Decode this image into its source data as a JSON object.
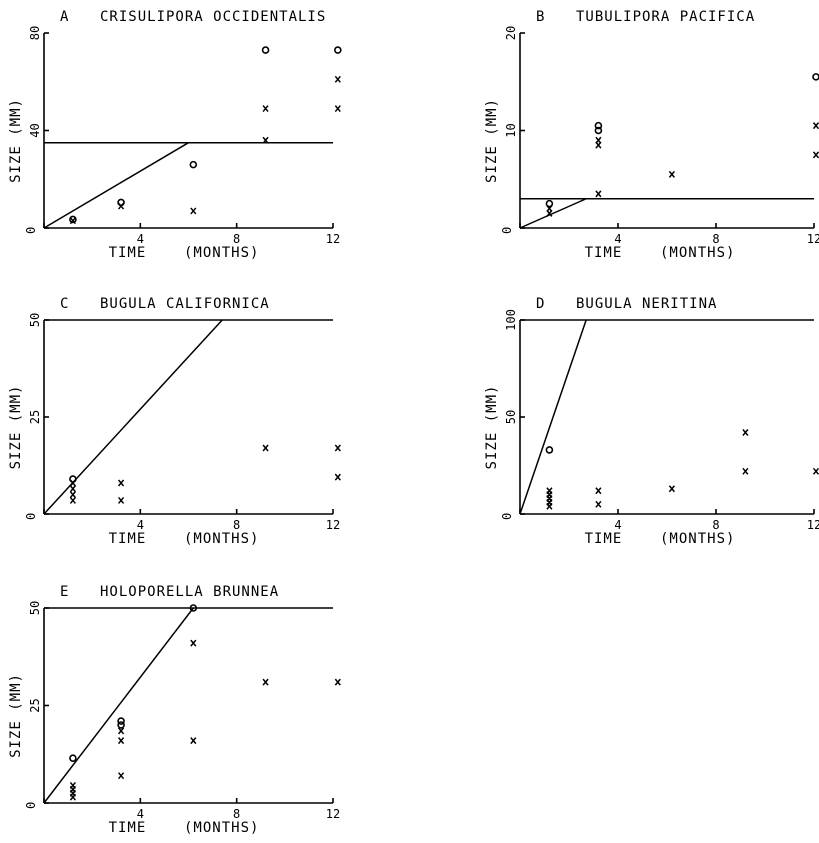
{
  "chart_data": [
    {
      "type": "scatter",
      "letter": "A",
      "title": "CRISULIPORA OCCIDENTALIS",
      "xlabel": "TIME    (MONTHS)",
      "ylabel": "SIZE  (MM)",
      "xlim": [
        0,
        12
      ],
      "ylim": [
        0,
        80
      ],
      "xticks": [
        "0",
        "4",
        "8",
        "12"
      ],
      "yticks": [
        "0",
        "40",
        "80"
      ],
      "series": [
        {
          "marker": "o",
          "points": [
            [
              1.2,
              3.5
            ],
            [
              3.2,
              10.5
            ],
            [
              6.2,
              26
            ],
            [
              9.2,
              73
            ],
            [
              12.2,
              73
            ]
          ]
        },
        {
          "marker": "x",
          "points": [
            [
              1.2,
              3
            ],
            [
              3.2,
              9
            ],
            [
              6.2,
              7
            ],
            [
              9.2,
              36
            ],
            [
              9.2,
              49
            ],
            [
              12.2,
              49
            ],
            [
              12.2,
              61
            ]
          ]
        }
      ],
      "lines": [
        {
          "kind": "diagonal",
          "x": [
            0,
            6
          ],
          "y": [
            0,
            35
          ]
        },
        {
          "kind": "horizontal",
          "y": 35
        }
      ]
    },
    {
      "type": "scatter",
      "letter": "B",
      "title": "TUBULIPORA PACIFICA",
      "xlabel": "TIME    (MONTHS)",
      "ylabel": "SIZE  (MM)",
      "xlim": [
        0,
        12
      ],
      "ylim": [
        0,
        20
      ],
      "xticks": [
        "0",
        "4",
        "8",
        "12"
      ],
      "yticks": [
        "0",
        "10",
        "20"
      ],
      "series": [
        {
          "marker": "o",
          "points": [
            [
              1.2,
              2.5
            ],
            [
              3.2,
              10.5
            ],
            [
              3.2,
              10
            ],
            [
              12.2,
              15.5
            ]
          ]
        },
        {
          "marker": "x",
          "points": [
            [
              1.2,
              2
            ],
            [
              1.2,
              1.5
            ],
            [
              3.2,
              9
            ],
            [
              3.2,
              8.5
            ],
            [
              3.2,
              3.5
            ],
            [
              6.2,
              5.5
            ],
            [
              12.2,
              10.5
            ],
            [
              12.2,
              7.5
            ]
          ]
        }
      ],
      "lines": [
        {
          "kind": "diagonal",
          "x": [
            0,
            2.7
          ],
          "y": [
            0,
            3
          ]
        },
        {
          "kind": "horizontal",
          "y": 3
        }
      ]
    },
    {
      "type": "scatter",
      "letter": "C",
      "title": "BUGULA CALIFORNICA",
      "xlabel": "TIME    (MONTHS)",
      "ylabel": "SIZE (MM)",
      "xlim": [
        0,
        12
      ],
      "ylim": [
        0,
        50
      ],
      "xticks": [
        "0",
        "4",
        "8",
        "12"
      ],
      "yticks": [
        "0",
        "25",
        "50"
      ],
      "series": [
        {
          "marker": "o",
          "points": [
            [
              1.2,
              9
            ]
          ]
        },
        {
          "marker": "x",
          "points": [
            [
              1.2,
              8
            ],
            [
              1.2,
              6.5
            ],
            [
              1.2,
              5
            ],
            [
              1.2,
              3.5
            ],
            [
              3.2,
              8
            ],
            [
              3.2,
              3.5
            ],
            [
              9.2,
              17
            ],
            [
              12.2,
              17
            ],
            [
              12.2,
              9.5
            ]
          ]
        }
      ],
      "lines": [
        {
          "kind": "diagonal",
          "x": [
            0,
            7.4
          ],
          "y": [
            0,
            50
          ]
        },
        {
          "kind": "horizontal",
          "y": 50
        }
      ]
    },
    {
      "type": "scatter",
      "letter": "D",
      "title": "BUGULA NERITINA",
      "xlabel": "TIME    (MONTHS)",
      "ylabel": "SIZE  (MM)",
      "xlim": [
        0,
        12
      ],
      "ylim": [
        0,
        100
      ],
      "xticks": [
        "0",
        "4",
        "8",
        "12"
      ],
      "yticks": [
        "0",
        "50",
        "100"
      ],
      "series": [
        {
          "marker": "o",
          "points": [
            [
              1.2,
              33
            ]
          ]
        },
        {
          "marker": "x",
          "points": [
            [
              1.2,
              12
            ],
            [
              1.2,
              10
            ],
            [
              1.2,
              8
            ],
            [
              1.2,
              6
            ],
            [
              1.2,
              4
            ],
            [
              3.2,
              12
            ],
            [
              3.2,
              5
            ],
            [
              6.2,
              13
            ],
            [
              9.2,
              42
            ],
            [
              9.2,
              22
            ],
            [
              12.2,
              22
            ]
          ]
        }
      ],
      "lines": [
        {
          "kind": "diagonal",
          "x": [
            0,
            2.7
          ],
          "y": [
            0,
            100
          ]
        },
        {
          "kind": "horizontal",
          "y": 100
        }
      ]
    },
    {
      "type": "scatter",
      "letter": "E",
      "title": "HOLOPORELLA BRUNNEA",
      "xlabel": "TIME    (MONTHS)",
      "ylabel": "SIZE  (MM)",
      "xlim": [
        0,
        12
      ],
      "ylim": [
        0,
        50
      ],
      "xticks": [
        "0",
        "4",
        "8",
        "12"
      ],
      "yticks": [
        "0",
        "25",
        "50"
      ],
      "series": [
        {
          "marker": "o",
          "points": [
            [
              1.2,
              11.5
            ],
            [
              3.2,
              21
            ],
            [
              3.2,
              20
            ],
            [
              6.2,
              50
            ]
          ]
        },
        {
          "marker": "x",
          "points": [
            [
              1.2,
              4.5
            ],
            [
              1.2,
              3.5
            ],
            [
              1.2,
              2.5
            ],
            [
              1.2,
              1.5
            ],
            [
              3.2,
              18.5
            ],
            [
              3.2,
              16
            ],
            [
              3.2,
              7
            ],
            [
              6.2,
              41
            ],
            [
              6.2,
              16
            ],
            [
              9.2,
              31
            ],
            [
              12.2,
              31
            ]
          ]
        }
      ],
      "lines": [
        {
          "kind": "diagonal",
          "x": [
            0,
            6.2
          ],
          "y": [
            0,
            50
          ]
        },
        {
          "kind": "horizontal",
          "y": 50
        }
      ]
    }
  ]
}
